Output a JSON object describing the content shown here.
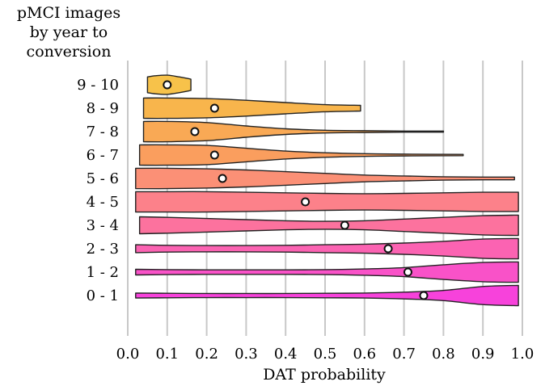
{
  "chart_data": {
    "type": "violin",
    "y_title_lines": [
      "pMCI images",
      "by year to",
      "conversion"
    ],
    "xlabel": "DAT probability",
    "xlim": [
      0.0,
      1.0
    ],
    "xticks": [
      "0.0",
      "0.1",
      "0.2",
      "0.3",
      "0.4",
      "0.5",
      "0.6",
      "0.7",
      "0.8",
      "0.9",
      "1.0"
    ],
    "grid": "vertical",
    "categories": [
      "9 - 10",
      "8 - 9",
      "7 - 8",
      "6 - 7",
      "5 - 6",
      "4 - 5",
      "3 - 4",
      "2 - 3",
      "1 - 2",
      "0 - 1"
    ],
    "series": [
      {
        "category": "9 - 10",
        "color": "#f7c24a",
        "range": [
          0.05,
          0.16
        ],
        "median": 0.1,
        "profile": [
          [
            0.05,
            0.7
          ],
          [
            0.07,
            0.8
          ],
          [
            0.1,
            0.85
          ],
          [
            0.13,
            0.7
          ],
          [
            0.16,
            0.5
          ]
        ]
      },
      {
        "category": "8 - 9",
        "color": "#f8b54c",
        "range": [
          0.04,
          0.59
        ],
        "median": 0.22,
        "profile": [
          [
            0.04,
            0.9
          ],
          [
            0.1,
            0.9
          ],
          [
            0.2,
            0.85
          ],
          [
            0.3,
            0.7
          ],
          [
            0.4,
            0.5
          ],
          [
            0.5,
            0.32
          ],
          [
            0.59,
            0.25
          ]
        ]
      },
      {
        "category": "7 - 8",
        "color": "#f9a955",
        "range": [
          0.04,
          0.8
        ],
        "median": 0.17,
        "profile": [
          [
            0.04,
            0.9
          ],
          [
            0.1,
            0.9
          ],
          [
            0.2,
            0.8
          ],
          [
            0.3,
            0.5
          ],
          [
            0.4,
            0.25
          ],
          [
            0.5,
            0.12
          ],
          [
            0.6,
            0.08
          ],
          [
            0.7,
            0.05
          ],
          [
            0.8,
            0.05
          ]
        ]
      },
      {
        "category": "6 - 7",
        "color": "#fa9e5e",
        "range": [
          0.03,
          0.85
        ],
        "median": 0.22,
        "profile": [
          [
            0.03,
            0.9
          ],
          [
            0.1,
            0.9
          ],
          [
            0.2,
            0.85
          ],
          [
            0.3,
            0.6
          ],
          [
            0.4,
            0.35
          ],
          [
            0.5,
            0.2
          ],
          [
            0.6,
            0.12
          ],
          [
            0.7,
            0.08
          ],
          [
            0.85,
            0.06
          ]
        ]
      },
      {
        "category": "5 - 6",
        "color": "#fb9076",
        "range": [
          0.02,
          0.98
        ],
        "median": 0.24,
        "profile": [
          [
            0.02,
            0.9
          ],
          [
            0.1,
            0.9
          ],
          [
            0.2,
            0.85
          ],
          [
            0.3,
            0.75
          ],
          [
            0.4,
            0.6
          ],
          [
            0.5,
            0.45
          ],
          [
            0.6,
            0.3
          ],
          [
            0.7,
            0.22
          ],
          [
            0.8,
            0.15
          ],
          [
            0.9,
            0.12
          ],
          [
            0.98,
            0.12
          ]
        ]
      },
      {
        "category": "4 - 5",
        "color": "#fc818a",
        "range": [
          0.02,
          0.99
        ],
        "median": 0.45,
        "profile": [
          [
            0.02,
            0.9
          ],
          [
            0.1,
            0.9
          ],
          [
            0.2,
            0.9
          ],
          [
            0.3,
            0.85
          ],
          [
            0.4,
            0.8
          ],
          [
            0.5,
            0.75
          ],
          [
            0.6,
            0.72
          ],
          [
            0.7,
            0.75
          ],
          [
            0.8,
            0.8
          ],
          [
            0.9,
            0.85
          ],
          [
            0.99,
            0.85
          ]
        ]
      },
      {
        "category": "3 - 4",
        "color": "#fc729e",
        "range": [
          0.03,
          0.99
        ],
        "median": 0.55,
        "profile": [
          [
            0.03,
            0.75
          ],
          [
            0.1,
            0.7
          ],
          [
            0.2,
            0.6
          ],
          [
            0.3,
            0.5
          ],
          [
            0.4,
            0.4
          ],
          [
            0.5,
            0.35
          ],
          [
            0.6,
            0.4
          ],
          [
            0.7,
            0.55
          ],
          [
            0.8,
            0.7
          ],
          [
            0.9,
            0.85
          ],
          [
            0.99,
            0.9
          ]
        ]
      },
      {
        "category": "2 - 3",
        "color": "#fb63b2",
        "range": [
          0.02,
          0.99
        ],
        "median": 0.66,
        "profile": [
          [
            0.02,
            0.35
          ],
          [
            0.1,
            0.3
          ],
          [
            0.2,
            0.28
          ],
          [
            0.3,
            0.28
          ],
          [
            0.4,
            0.3
          ],
          [
            0.5,
            0.35
          ],
          [
            0.6,
            0.4
          ],
          [
            0.7,
            0.5
          ],
          [
            0.8,
            0.65
          ],
          [
            0.9,
            0.85
          ],
          [
            0.99,
            0.9
          ]
        ]
      },
      {
        "category": "1 - 2",
        "color": "#f952c8",
        "range": [
          0.02,
          0.99
        ],
        "median": 0.71,
        "profile": [
          [
            0.02,
            0.25
          ],
          [
            0.1,
            0.22
          ],
          [
            0.2,
            0.2
          ],
          [
            0.3,
            0.2
          ],
          [
            0.4,
            0.2
          ],
          [
            0.5,
            0.22
          ],
          [
            0.6,
            0.28
          ],
          [
            0.7,
            0.4
          ],
          [
            0.8,
            0.65
          ],
          [
            0.9,
            0.85
          ],
          [
            0.99,
            0.9
          ]
        ]
      },
      {
        "category": "0 - 1",
        "color": "#f742db",
        "range": [
          0.02,
          0.99
        ],
        "median": 0.75,
        "profile": [
          [
            0.02,
            0.22
          ],
          [
            0.1,
            0.2
          ],
          [
            0.2,
            0.18
          ],
          [
            0.3,
            0.18
          ],
          [
            0.4,
            0.18
          ],
          [
            0.5,
            0.2
          ],
          [
            0.6,
            0.22
          ],
          [
            0.7,
            0.3
          ],
          [
            0.8,
            0.45
          ],
          [
            0.9,
            0.8
          ],
          [
            0.99,
            0.9
          ]
        ]
      }
    ]
  }
}
